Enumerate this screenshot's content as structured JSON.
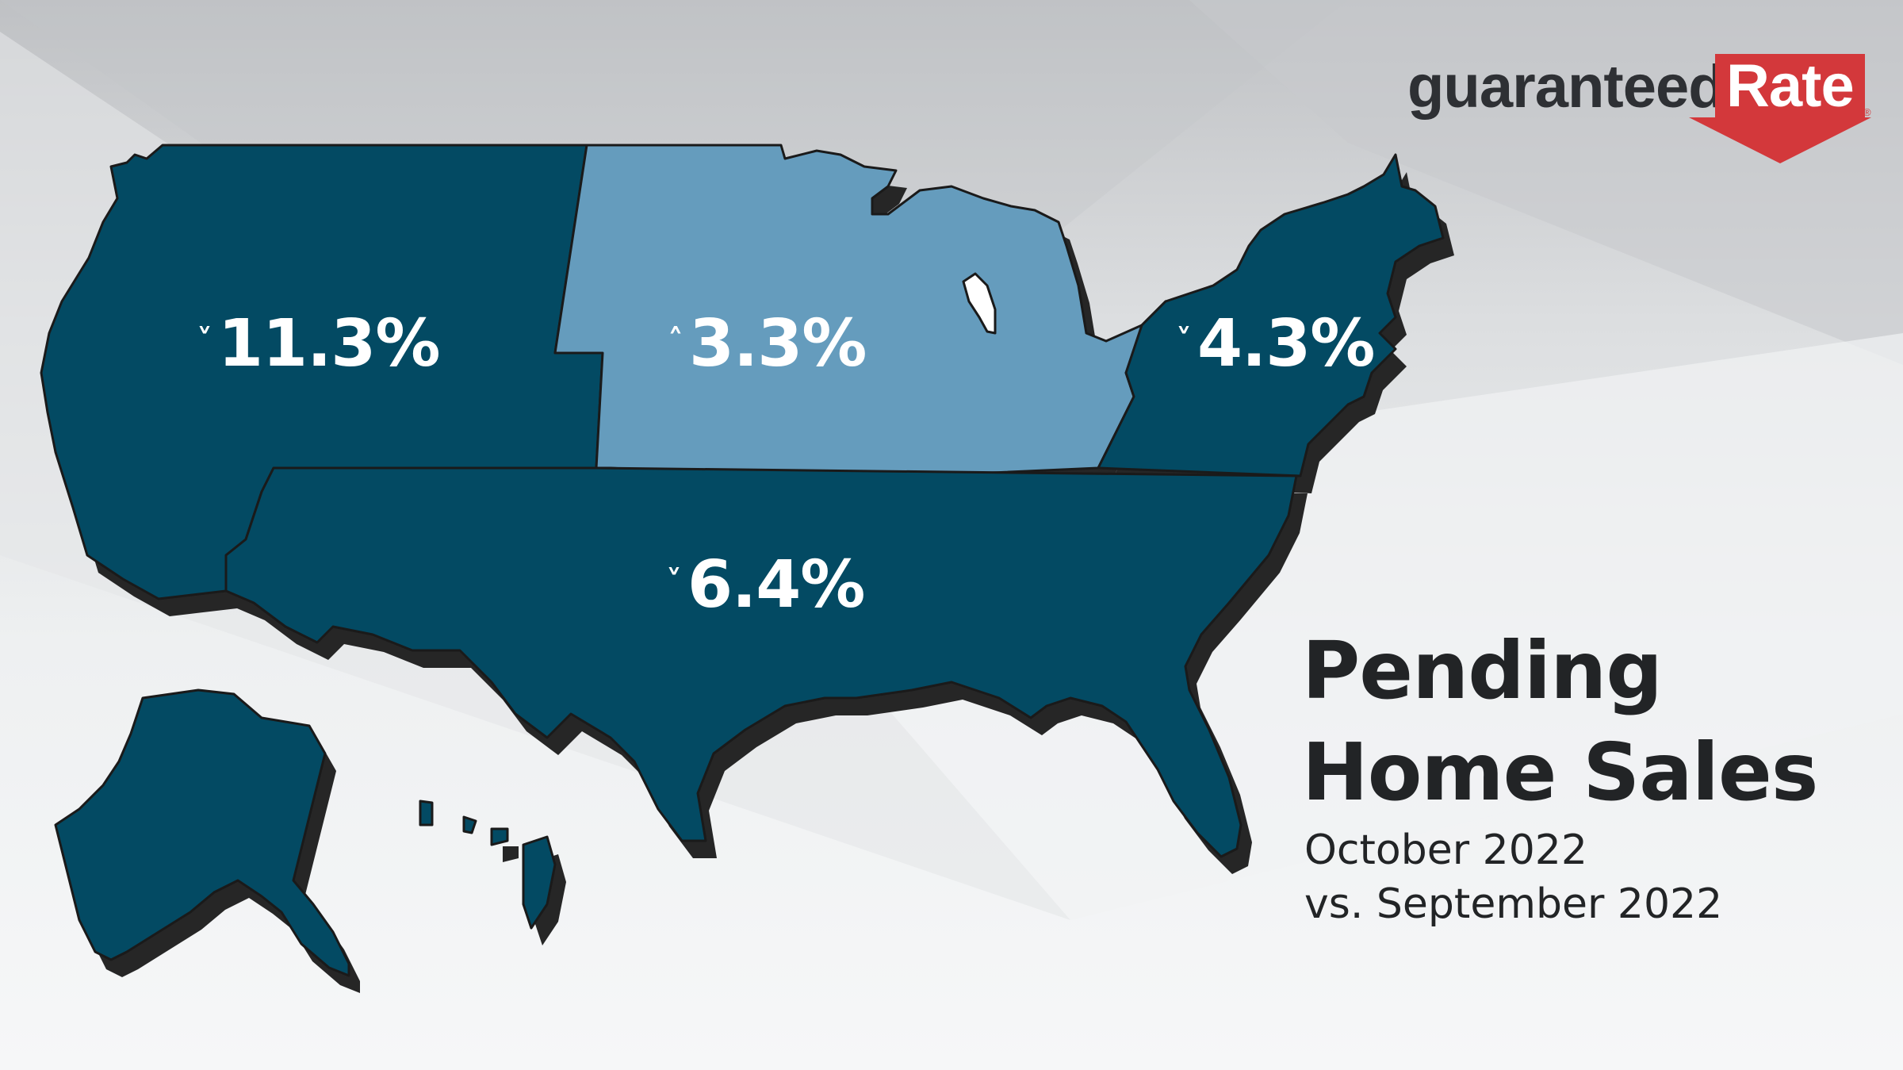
{
  "brand": {
    "name_part1": "guaranteed",
    "name_part2": "Rate",
    "registered": "®",
    "color_red": "#d3383b",
    "color_dark": "#2e3034"
  },
  "map": {
    "colors": {
      "decrease": "#034a63",
      "increase": "#659cbd",
      "shadow": "#262626",
      "outline": "#1a1a1a"
    },
    "regions": [
      {
        "id": "west",
        "change": "11.3%",
        "direction": "down",
        "arrow": "˅"
      },
      {
        "id": "midwest",
        "change": "3.3%",
        "direction": "up",
        "arrow": "˄"
      },
      {
        "id": "northeast",
        "change": "4.3%",
        "direction": "down",
        "arrow": "˅"
      },
      {
        "id": "south",
        "change": "6.4%",
        "direction": "down",
        "arrow": "˅"
      }
    ]
  },
  "title": {
    "line1": "Pending",
    "line2": "Home Sales"
  },
  "subtitle": {
    "line1": "October 2022",
    "line2": "vs. September 2022"
  }
}
